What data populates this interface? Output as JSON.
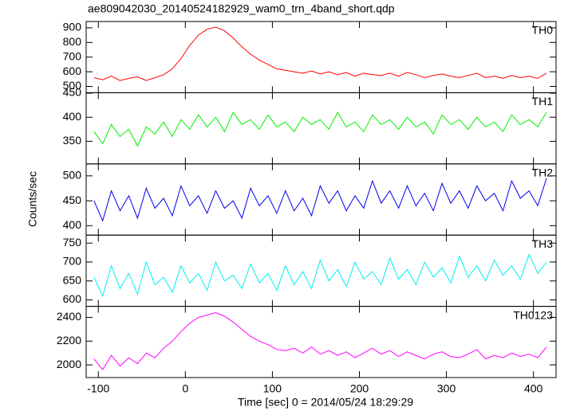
{
  "title": "ae809042030_20140524182929_wam0_trn_4band_short.qdp",
  "x_label": "Time [sec] 0 = 2014/05/24 18:29:29",
  "y_label": "Counts/sec",
  "xlim": [
    -114,
    426
  ],
  "xticks": [
    -100,
    0,
    100,
    200,
    300,
    400
  ],
  "x": [
    -105,
    -95,
    -85,
    -75,
    -65,
    -55,
    -45,
    -35,
    -25,
    -15,
    -5,
    5,
    15,
    25,
    35,
    45,
    55,
    65,
    75,
    85,
    95,
    105,
    115,
    125,
    135,
    145,
    155,
    165,
    175,
    185,
    195,
    205,
    215,
    225,
    235,
    245,
    255,
    265,
    275,
    285,
    295,
    305,
    315,
    325,
    335,
    345,
    355,
    365,
    375,
    385,
    395,
    405,
    415
  ],
  "chart_data": [
    {
      "type": "line",
      "label": "TH0",
      "color": "#ff0000",
      "ylim": [
        457,
        943
      ],
      "yticks": [
        500,
        600,
        700,
        800,
        900
      ],
      "values": [
        560,
        545,
        570,
        540,
        555,
        565,
        540,
        560,
        580,
        620,
        690,
        780,
        850,
        890,
        905,
        880,
        830,
        770,
        720,
        680,
        650,
        620,
        610,
        600,
        590,
        605,
        585,
        600,
        580,
        595,
        570,
        590,
        580,
        575,
        590,
        570,
        595,
        580,
        560,
        575,
        585,
        570,
        560,
        575,
        590,
        560,
        570,
        555,
        575,
        560,
        570,
        555,
        590
      ]
    },
    {
      "type": "line",
      "label": "TH1",
      "color": "#00ee00",
      "ylim": [
        303,
        451
      ],
      "yticks": [
        350,
        400,
        450
      ],
      "values": [
        370,
        345,
        385,
        360,
        375,
        340,
        380,
        365,
        390,
        360,
        395,
        375,
        405,
        380,
        400,
        370,
        410,
        385,
        395,
        375,
        405,
        380,
        390,
        370,
        400,
        385,
        395,
        375,
        410,
        380,
        390,
        370,
        405,
        385,
        395,
        375,
        400,
        380,
        390,
        365,
        405,
        385,
        395,
        375,
        400,
        380,
        390,
        370,
        405,
        385,
        395,
        380,
        410
      ]
    },
    {
      "type": "line",
      "label": "TH2",
      "color": "#0000ee",
      "ylim": [
        381,
        524
      ],
      "yticks": [
        400,
        450,
        500
      ],
      "values": [
        450,
        410,
        470,
        430,
        460,
        415,
        475,
        435,
        455,
        420,
        480,
        440,
        460,
        425,
        470,
        435,
        450,
        415,
        475,
        440,
        460,
        425,
        470,
        430,
        455,
        420,
        480,
        445,
        470,
        430,
        460,
        435,
        490,
        445,
        470,
        435,
        480,
        440,
        465,
        430,
        485,
        445,
        470,
        435,
        480,
        450,
        465,
        430,
        490,
        455,
        470,
        440,
        495
      ]
    },
    {
      "type": "line",
      "label": "TH3",
      "color": "#00eeee",
      "ylim": [
        583,
        771
      ],
      "yticks": [
        600,
        650,
        700,
        750
      ],
      "values": [
        660,
        610,
        690,
        630,
        670,
        615,
        700,
        640,
        660,
        620,
        690,
        645,
        670,
        625,
        700,
        650,
        665,
        630,
        695,
        645,
        670,
        625,
        690,
        640,
        675,
        630,
        705,
        650,
        680,
        635,
        700,
        655,
        675,
        640,
        710,
        655,
        680,
        640,
        700,
        660,
        685,
        645,
        715,
        660,
        690,
        650,
        705,
        665,
        690,
        655,
        720,
        670,
        700
      ]
    },
    {
      "type": "line",
      "label": "TH0123",
      "color": "#ff00ff",
      "ylim": [
        1893,
        2493
      ],
      "yticks": [
        2000,
        2200,
        2400
      ],
      "values": [
        2050,
        1960,
        2080,
        1990,
        2060,
        2010,
        2100,
        2060,
        2140,
        2200,
        2280,
        2350,
        2400,
        2420,
        2440,
        2410,
        2360,
        2300,
        2240,
        2200,
        2170,
        2130,
        2120,
        2140,
        2100,
        2150,
        2090,
        2120,
        2080,
        2110,
        2060,
        2100,
        2140,
        2090,
        2120,
        2070,
        2110,
        2080,
        2050,
        2090,
        2110,
        2070,
        2060,
        2090,
        2130,
        2050,
        2080,
        2060,
        2100,
        2070,
        2090,
        2060,
        2150
      ]
    }
  ]
}
